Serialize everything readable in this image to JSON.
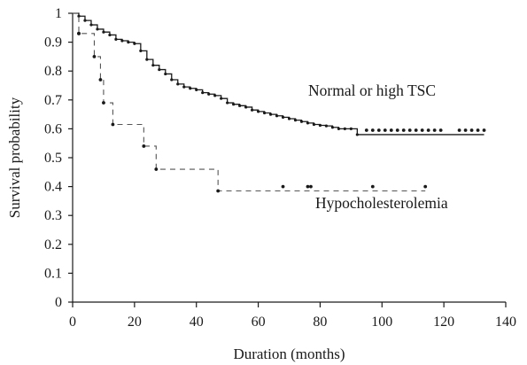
{
  "chart_data": {
    "type": "line",
    "title": "",
    "xlabel": "Duration (months)",
    "ylabel": "Survival probability",
    "xlim": [
      0,
      140
    ],
    "ylim": [
      0,
      1
    ],
    "x_ticks": [
      "0",
      "20",
      "40",
      "60",
      "80",
      "100",
      "120",
      "140"
    ],
    "y_ticks": [
      "0",
      "0.1",
      "0.2",
      "0.3",
      "0.4",
      "0.5",
      "0.6",
      "0.7",
      "0.8",
      "0.9",
      "1"
    ],
    "grid": false,
    "legend": "none",
    "series": [
      {
        "name": "Normal or high TSC",
        "style": "solid-step",
        "color": "#1a1a1a",
        "x": [
          0,
          2,
          4,
          6,
          8,
          10,
          12,
          14,
          16,
          18,
          20,
          22,
          24,
          26,
          28,
          30,
          32,
          34,
          36,
          38,
          40,
          42,
          44,
          46,
          48,
          50,
          52,
          54,
          56,
          58,
          60,
          62,
          64,
          66,
          68,
          70,
          72,
          74,
          76,
          78,
          80,
          82,
          84,
          86,
          88,
          90,
          92,
          100,
          110,
          120,
          133
        ],
        "y": [
          1.0,
          0.99,
          0.975,
          0.96,
          0.945,
          0.935,
          0.925,
          0.91,
          0.905,
          0.9,
          0.895,
          0.87,
          0.84,
          0.82,
          0.805,
          0.79,
          0.77,
          0.755,
          0.745,
          0.74,
          0.735,
          0.725,
          0.72,
          0.715,
          0.705,
          0.69,
          0.685,
          0.68,
          0.675,
          0.665,
          0.66,
          0.655,
          0.65,
          0.645,
          0.64,
          0.635,
          0.63,
          0.625,
          0.62,
          0.615,
          0.612,
          0.61,
          0.605,
          0.6,
          0.6,
          0.6,
          0.58,
          0.58,
          0.58,
          0.58,
          0.58
        ],
        "censored_x": [
          95,
          97,
          99,
          101,
          103,
          105,
          107,
          109,
          111,
          113,
          115,
          117,
          119,
          125,
          127,
          129,
          131,
          133
        ],
        "censored_y": 0.595
      },
      {
        "name": "Hypocholesterolemia",
        "style": "dashed-step",
        "color": "#555555",
        "x": [
          0,
          2,
          7,
          9,
          10,
          13,
          23,
          27,
          47,
          114
        ],
        "y": [
          1.0,
          0.93,
          0.85,
          0.77,
          0.69,
          0.615,
          0.54,
          0.46,
          0.385,
          0.385
        ],
        "censored_x": [
          2,
          68,
          76,
          77,
          97,
          114
        ],
        "censored_y": [
          0.93,
          0.4,
          0.4,
          0.4,
          0.4,
          0.4
        ]
      }
    ]
  }
}
